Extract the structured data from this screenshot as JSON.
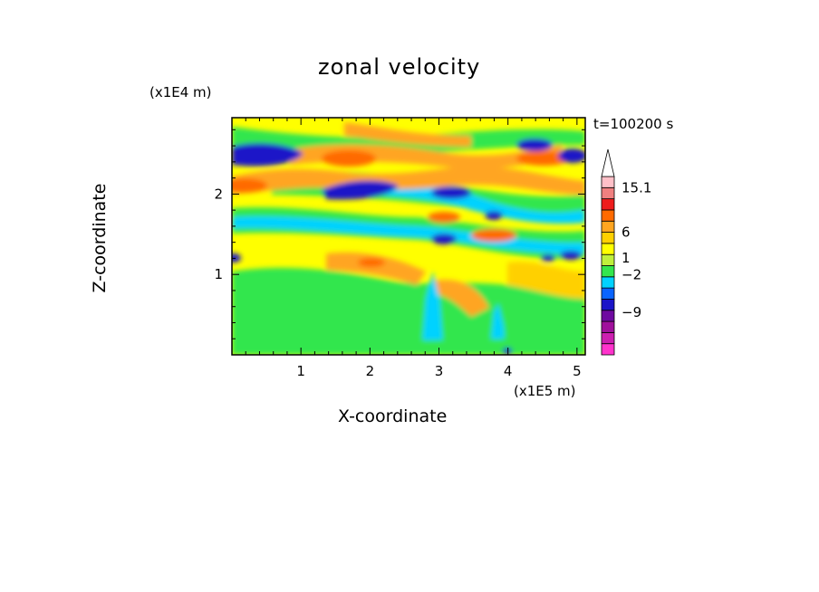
{
  "chart_data": {
    "type": "heatmap",
    "title": "zonal velocity",
    "xlabel": "X-coordinate",
    "ylabel": "Z-coordinate",
    "x_scale_label": "(x1E5 m)",
    "y_scale_label": "(x1E4 m)",
    "time_label": "t=100200 s",
    "xlim": [
      0,
      5.12
    ],
    "ylim": [
      0,
      2.95
    ],
    "x_ticks": [
      "1",
      "2",
      "3",
      "4",
      "5"
    ],
    "y_ticks": [
      "1",
      "2"
    ],
    "colorbar": {
      "levels_labeled": [
        "15.1",
        "6",
        "1",
        "-2",
        "-9"
      ],
      "colors": [
        "#ff33cc",
        "#cc1fb0",
        "#a0109c",
        "#6e0aa0",
        "#1a14c8",
        "#0a64ff",
        "#00d2ff",
        "#33e64d",
        "#bff03c",
        "#ffff00",
        "#ffd000",
        "#ffa520",
        "#ff6a00",
        "#ee1c1c",
        "#f08080",
        "#ffc0c8",
        "#ffffff"
      ]
    },
    "grid": false
  }
}
